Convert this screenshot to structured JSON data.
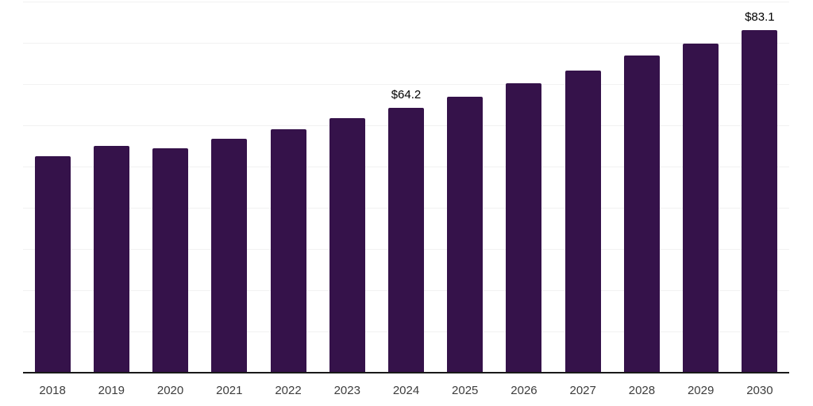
{
  "chart_data": {
    "type": "bar",
    "title": "",
    "xlabel": "",
    "ylabel": "",
    "categories": [
      "2018",
      "2019",
      "2020",
      "2021",
      "2022",
      "2023",
      "2024",
      "2025",
      "2026",
      "2027",
      "2028",
      "2029",
      "2030"
    ],
    "values": [
      52.5,
      55.0,
      54.4,
      56.7,
      59.0,
      61.7,
      64.2,
      67.0,
      70.1,
      73.3,
      76.9,
      79.9,
      83.1
    ],
    "data_labels": [
      {
        "index": 6,
        "text": "$64.2"
      },
      {
        "index": 12,
        "text": "$83.1"
      }
    ],
    "value_prefix": "$",
    "ylim": [
      0,
      90
    ],
    "grid_step": 10,
    "grid": "horizontal",
    "legend": "none",
    "colors": {
      "bar": "#35124a",
      "axis_line": "#1a1a1a",
      "gridline": "#f2f2f2",
      "tick_label": "#3d3d3d",
      "data_label": "#000000",
      "background": "#ffffff"
    }
  }
}
